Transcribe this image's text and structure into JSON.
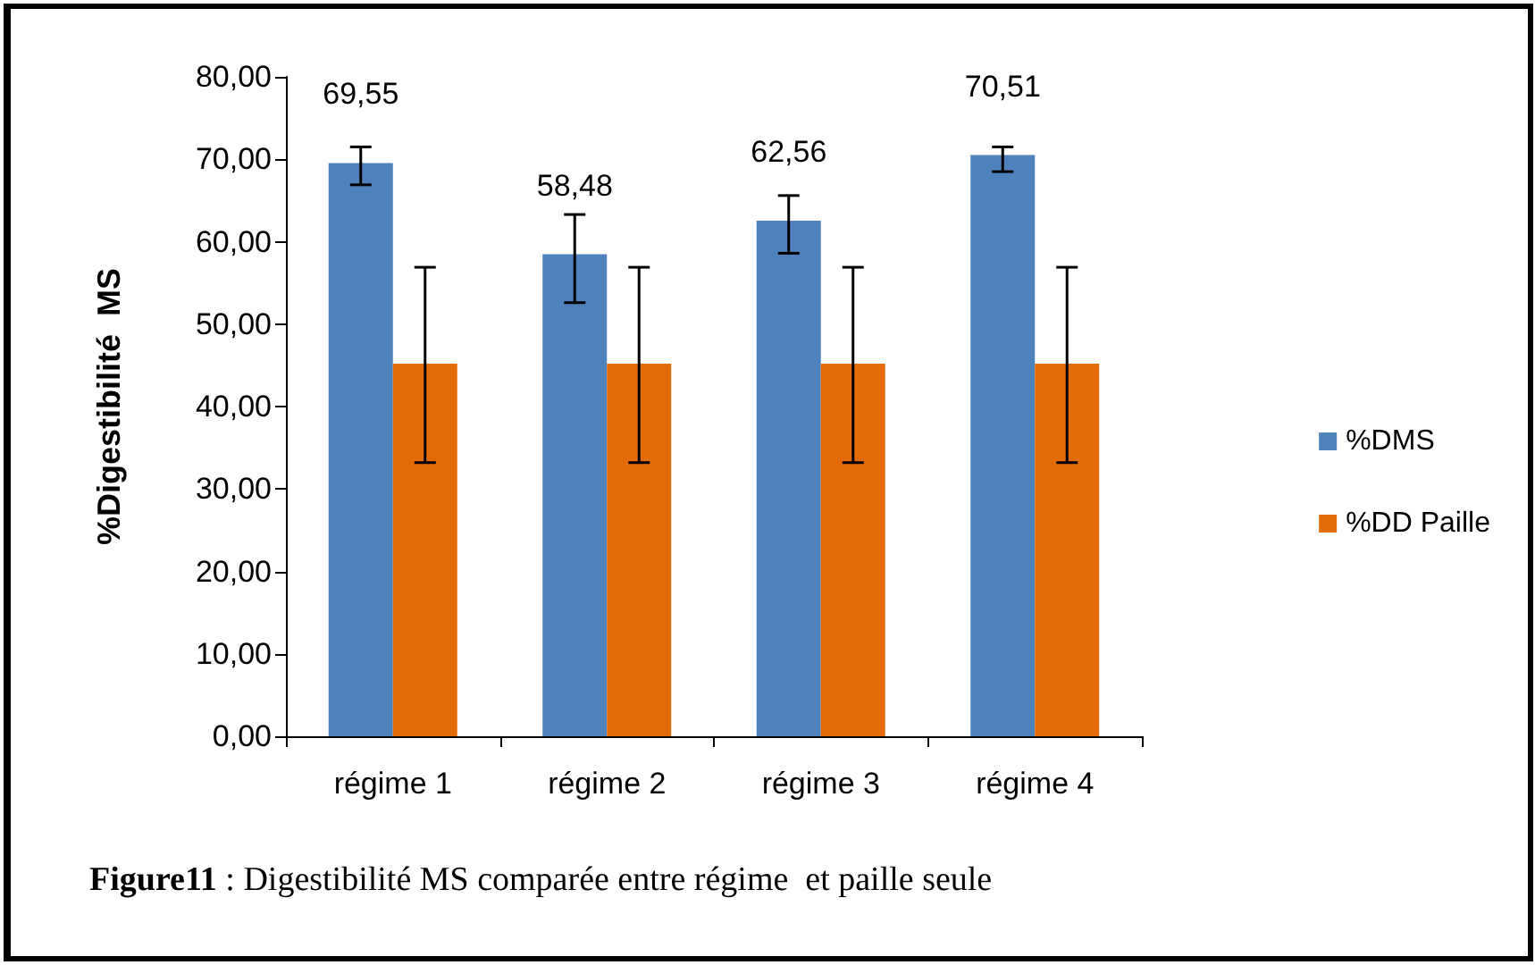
{
  "chart_data": {
    "type": "bar",
    "ylabel": "%Digestibilité  MS",
    "categories": [
      "régime 1",
      "régime 2",
      "régime 3",
      "régime 4"
    ],
    "series": [
      {
        "name": "%DMS",
        "color": "#4f81bd",
        "values": [
          69.55,
          58.48,
          62.56,
          70.51
        ],
        "value_labels": [
          "69,55",
          "58,48",
          "62,56",
          "70,51"
        ],
        "errors": [
          [
            66.9,
            71.5
          ],
          [
            52.6,
            63.3
          ],
          [
            58.6,
            65.6
          ],
          [
            68.5,
            71.5
          ]
        ]
      },
      {
        "name": "%DD Paille",
        "color": "#e36c09",
        "values": [
          45.2,
          45.2,
          45.2,
          45.2
        ],
        "errors": [
          [
            33.2,
            56.9
          ],
          [
            33.2,
            56.9
          ],
          [
            33.2,
            56.9
          ],
          [
            33.2,
            56.9
          ]
        ]
      }
    ],
    "ylim": [
      0,
      80
    ],
    "yticks": [
      {
        "value": 0,
        "label": "0,00"
      },
      {
        "value": 10,
        "label": "10,00"
      },
      {
        "value": 20,
        "label": "20,00"
      },
      {
        "value": 30,
        "label": "30,00"
      },
      {
        "value": 40,
        "label": "40,00"
      },
      {
        "value": 50,
        "label": "50,00"
      },
      {
        "value": 60,
        "label": "60,00"
      },
      {
        "value": 70,
        "label": "70,00"
      },
      {
        "value": 80,
        "label": "80,00"
      }
    ],
    "grid": false,
    "legend": "right",
    "annotations": [
      "Figure11 : Digestibilité MS comparée entre régime  et paille seule"
    ]
  }
}
